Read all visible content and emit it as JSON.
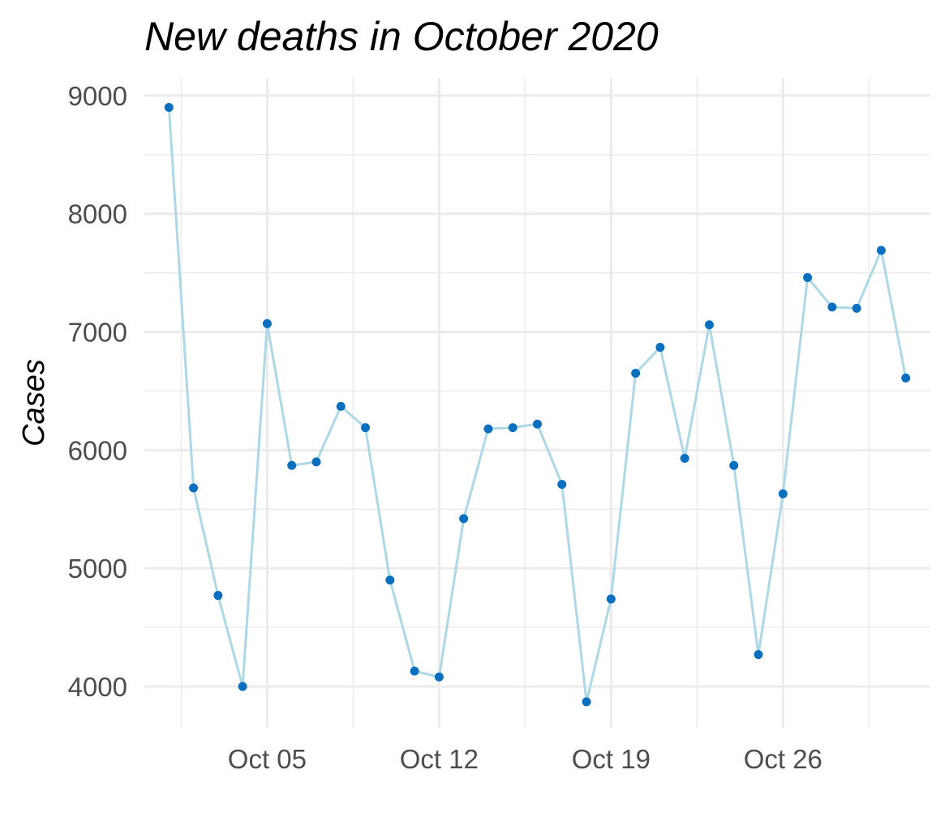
{
  "chart_data": {
    "type": "line",
    "title": "New deaths in October 2020",
    "xlabel": "",
    "ylabel": "Cases",
    "x_tick_labels": [
      "Oct 05",
      "Oct 12",
      "Oct 19",
      "Oct 26"
    ],
    "y_tick_labels": [
      "4000",
      "5000",
      "6000",
      "7000",
      "8000",
      "9000"
    ],
    "ylim": [
      3650,
      9150
    ],
    "xlim": [
      "2020-09-30",
      "2020-11-01"
    ],
    "grid": true,
    "legend": "none",
    "series": [
      {
        "line_color": "#add8e6",
        "point_color": "#0a6fbf",
        "x": [
          "2020-10-01",
          "2020-10-02",
          "2020-10-03",
          "2020-10-04",
          "2020-10-05",
          "2020-10-06",
          "2020-10-07",
          "2020-10-08",
          "2020-10-09",
          "2020-10-10",
          "2020-10-11",
          "2020-10-12",
          "2020-10-13",
          "2020-10-14",
          "2020-10-15",
          "2020-10-16",
          "2020-10-17",
          "2020-10-18",
          "2020-10-19",
          "2020-10-20",
          "2020-10-21",
          "2020-10-22",
          "2020-10-23",
          "2020-10-24",
          "2020-10-25",
          "2020-10-26",
          "2020-10-27",
          "2020-10-28",
          "2020-10-29",
          "2020-10-30",
          "2020-10-31"
        ],
        "values": [
          8900,
          5680,
          4770,
          4000,
          7070,
          5870,
          5900,
          6370,
          6190,
          4900,
          4130,
          4080,
          5420,
          6180,
          6190,
          6220,
          5710,
          3870,
          4740,
          6650,
          6870,
          5930,
          7060,
          5870,
          4270,
          5630,
          7460,
          7210,
          7200,
          7690,
          6610
        ]
      }
    ]
  }
}
